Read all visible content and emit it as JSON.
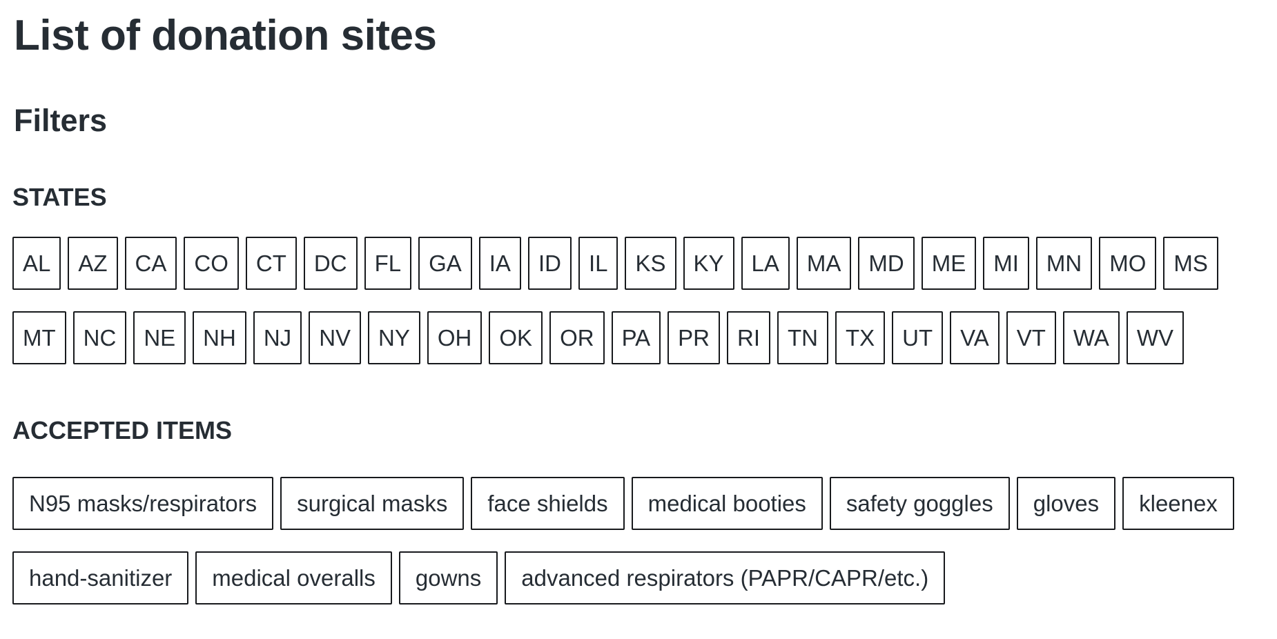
{
  "page": {
    "title": "List of donation sites",
    "filters_heading": "Filters"
  },
  "filters": {
    "states": {
      "label": "STATES",
      "rows": [
        [
          "AL",
          "AZ",
          "CA",
          "CO",
          "CT",
          "DC",
          "FL",
          "GA",
          "IA",
          "ID",
          "IL",
          "KS",
          "KY",
          "LA",
          "MA",
          "MD",
          "ME",
          "MI",
          "MN",
          "MO",
          "MS"
        ],
        [
          "MT",
          "NC",
          "NE",
          "NH",
          "NJ",
          "NV",
          "NY",
          "OH",
          "OK",
          "OR",
          "PA",
          "PR",
          "RI",
          "TN",
          "TX",
          "UT",
          "VA",
          "VT",
          "WA",
          "WV"
        ]
      ]
    },
    "accepted_items": {
      "label": "ACCEPTED ITEMS",
      "rows": [
        [
          "N95 masks/respirators",
          "surgical masks",
          "face shields",
          "medical booties",
          "safety goggles",
          "gloves",
          "kleenex"
        ],
        [
          "hand-sanitizer",
          "medical overalls",
          "gowns",
          "advanced respirators (PAPR/CAPR/etc.)"
        ]
      ]
    }
  },
  "colors": {
    "ink": "#262d34",
    "chip_border": "#17191c",
    "background": "#ffffff"
  }
}
